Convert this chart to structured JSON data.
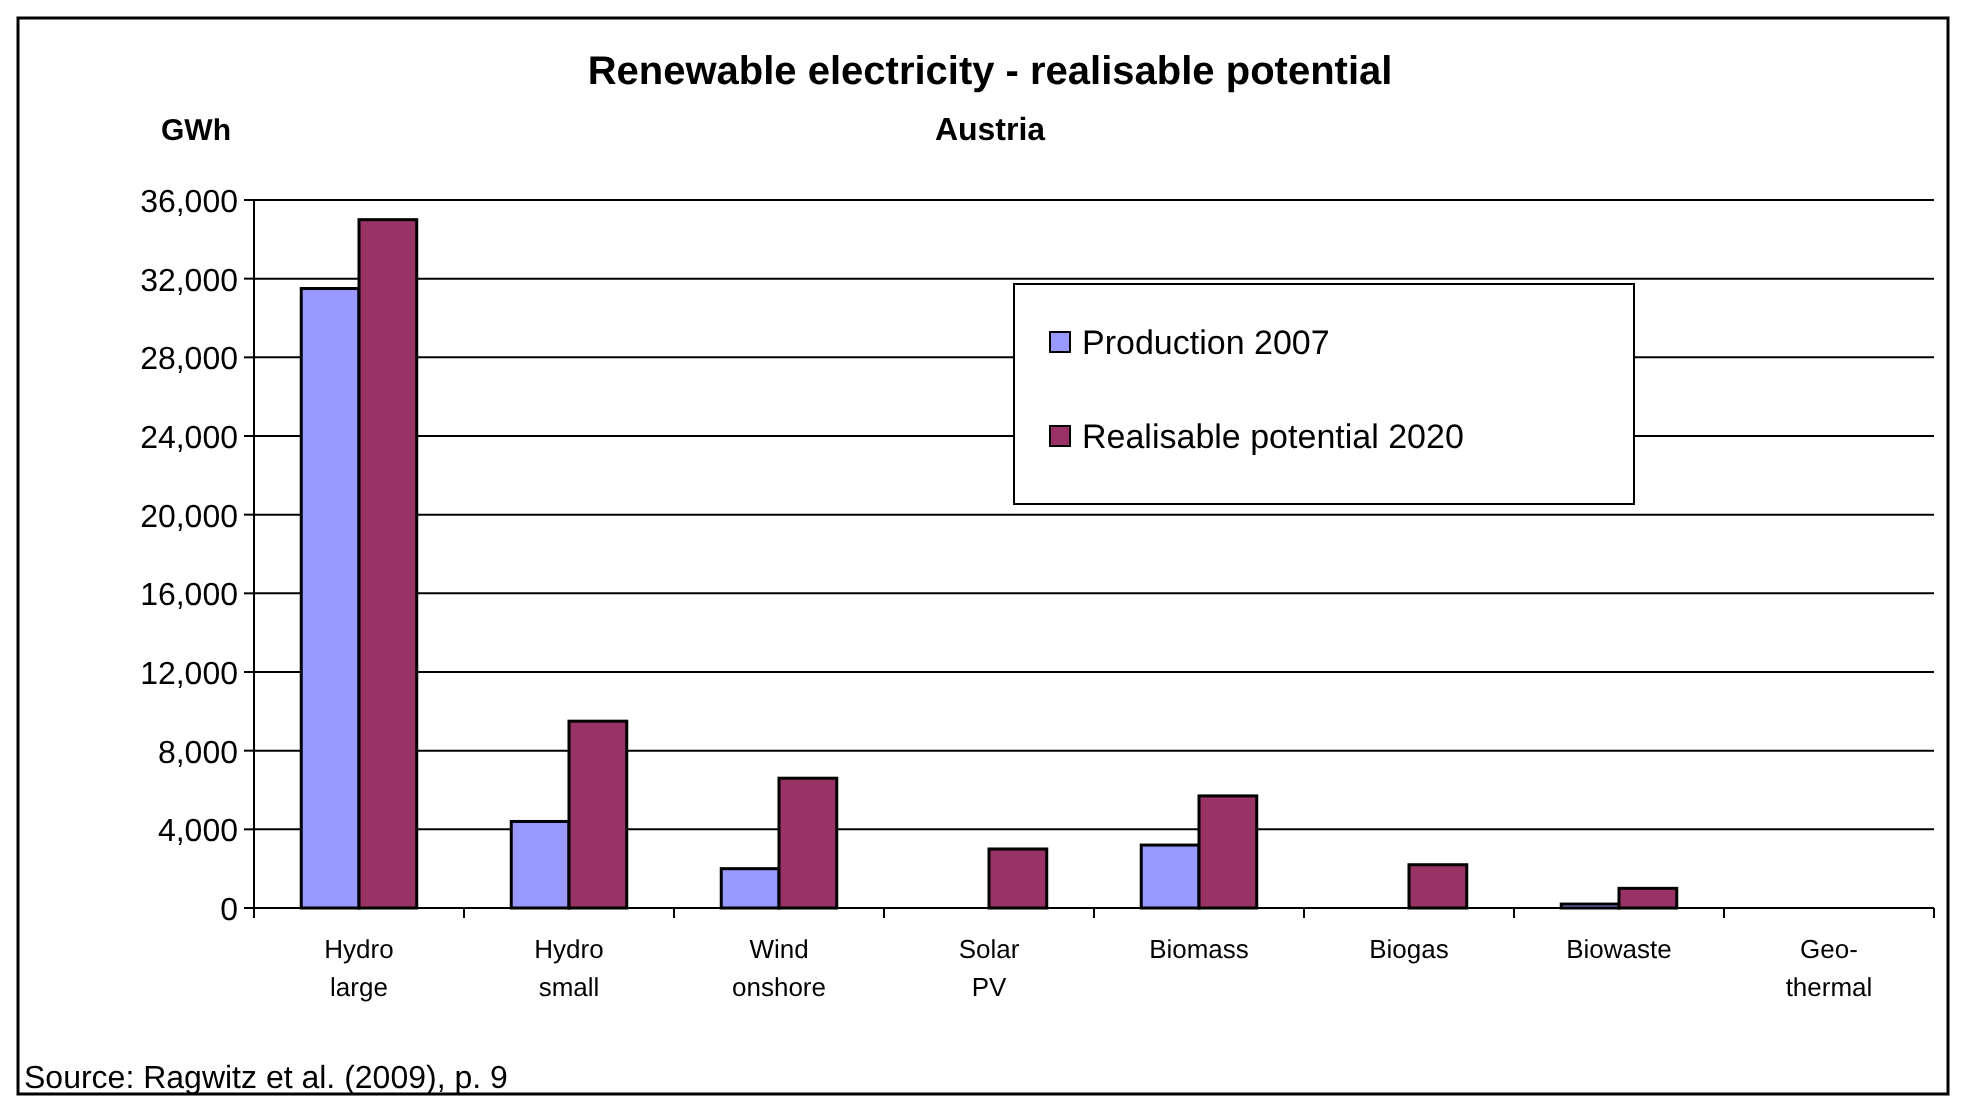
{
  "chart_data": {
    "type": "bar",
    "title": "Renewable electricity - realisable potential",
    "subtitle": "Austria",
    "ylabel": "GWh",
    "categories": [
      "Hydro large",
      "Hydro small",
      "Wind onshore",
      "Solar PV",
      "Biomass",
      "Biogas",
      "Biowaste",
      "Geo-thermal"
    ],
    "series": [
      {
        "name": "Production 2007",
        "color": "#9999ff",
        "values": [
          31500,
          4400,
          2000,
          0,
          3200,
          0,
          200,
          0
        ]
      },
      {
        "name": "Realisable potential 2020",
        "color": "#993366",
        "values": [
          35000,
          9500,
          6600,
          3000,
          5700,
          2200,
          1000,
          0
        ]
      }
    ],
    "ylim": [
      0,
      36000
    ],
    "yticks": [
      {
        "value": 0,
        "label": "0"
      },
      {
        "value": 4000,
        "label": "4,000"
      },
      {
        "value": 8000,
        "label": "8,000"
      },
      {
        "value": 12000,
        "label": "12,000"
      },
      {
        "value": 16000,
        "label": "16,000"
      },
      {
        "value": 20000,
        "label": "20,000"
      },
      {
        "value": 24000,
        "label": "24,000"
      },
      {
        "value": 28000,
        "label": "28,000"
      },
      {
        "value": 32000,
        "label": "32,000"
      },
      {
        "value": 36000,
        "label": "36,000"
      }
    ],
    "grid": "y",
    "legend": "top right",
    "annotations": [
      "Source: Ragwitz et al. (2009), p. 9"
    ]
  }
}
